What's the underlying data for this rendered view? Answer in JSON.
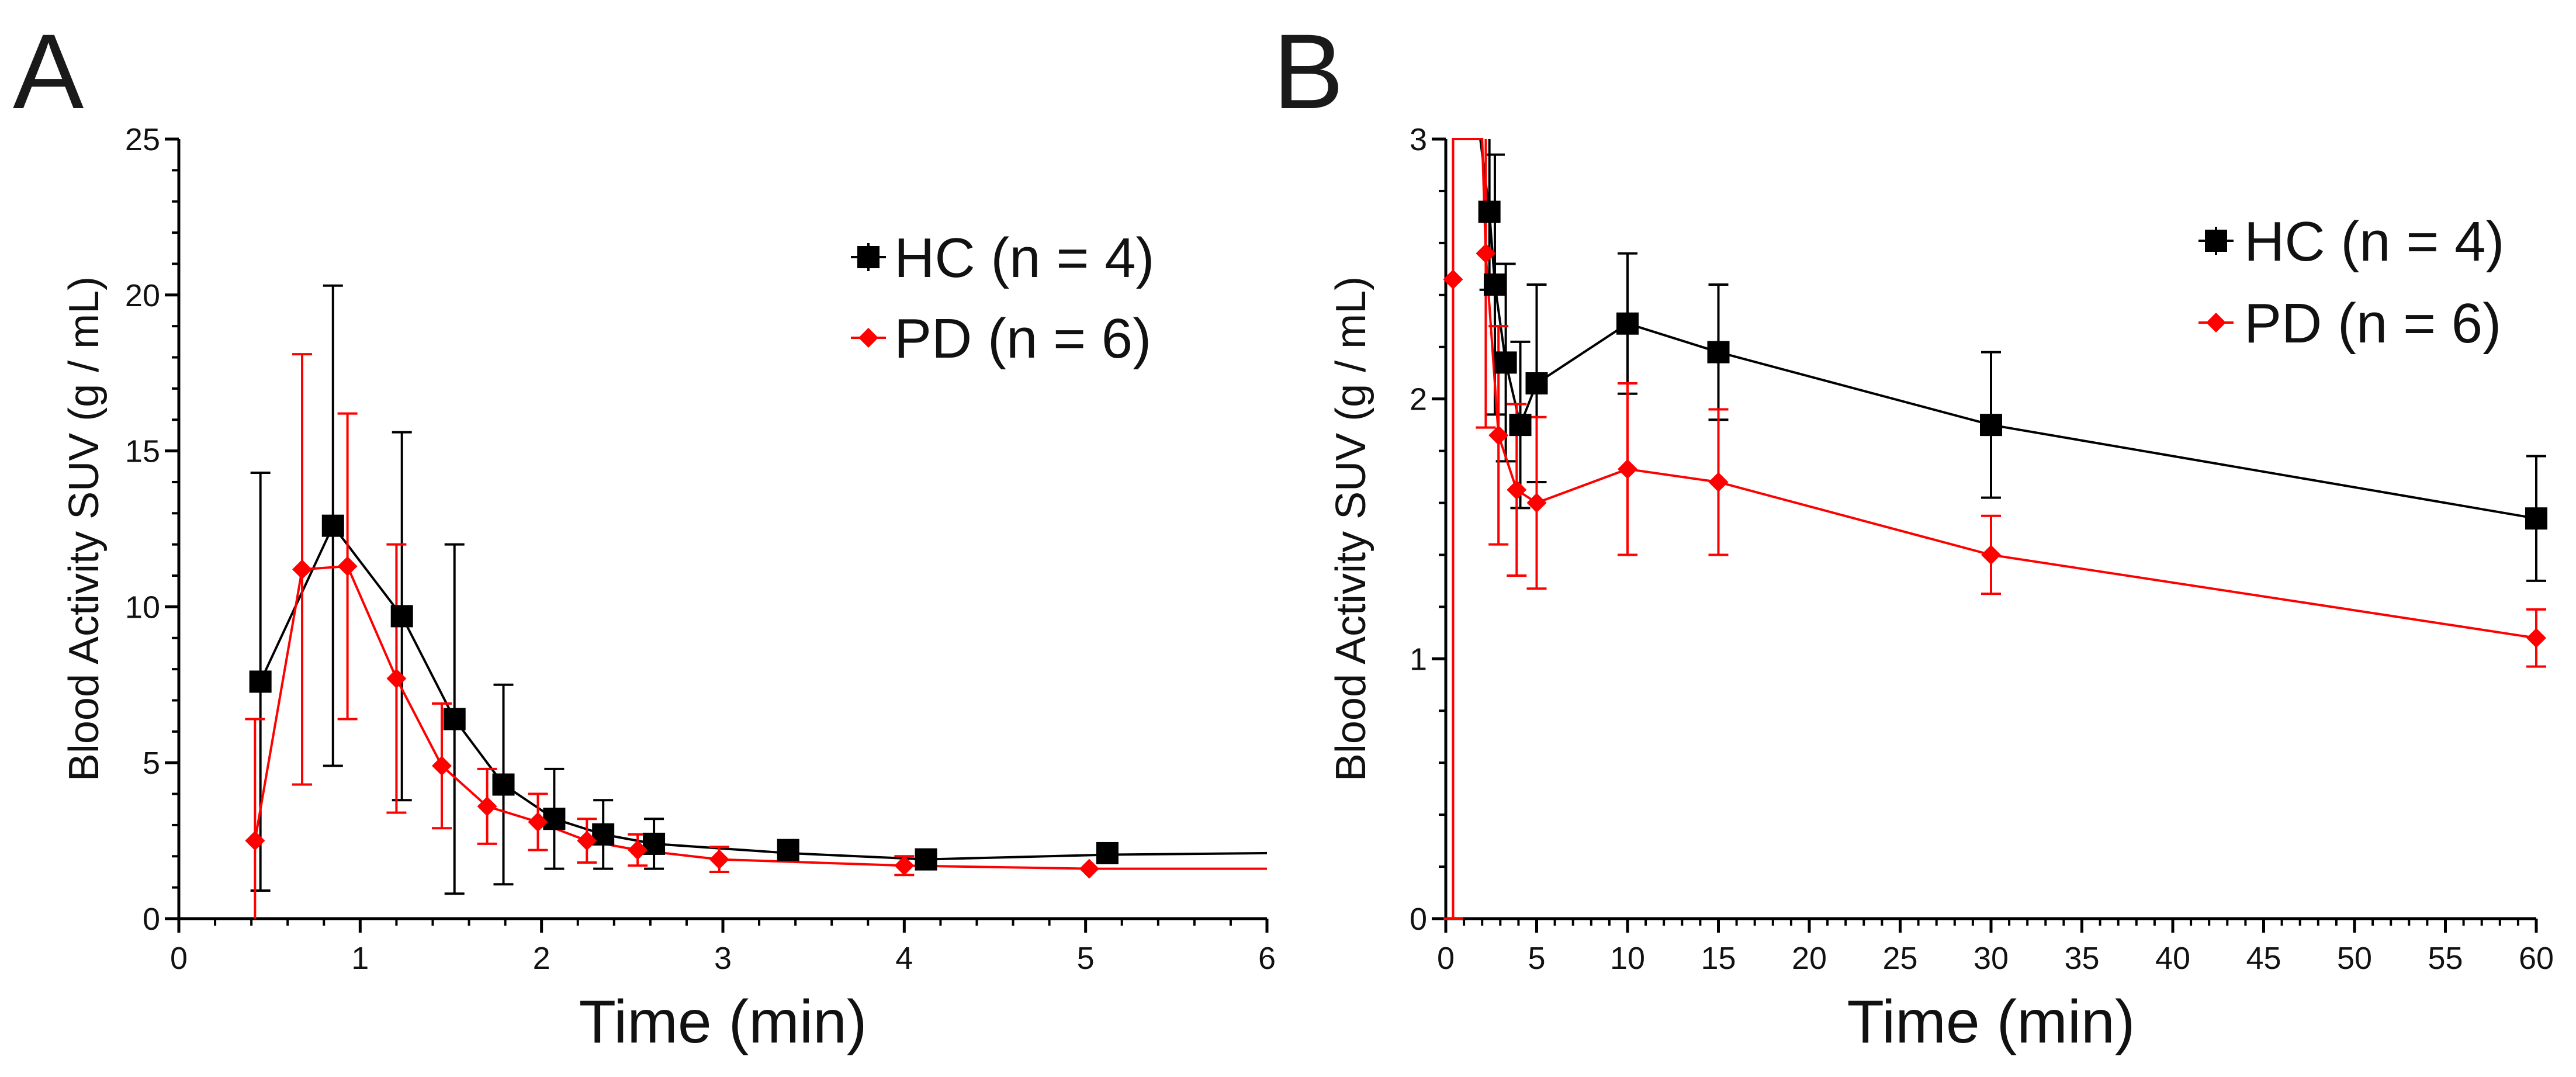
{
  "figure": {
    "panel_labels": [
      "A",
      "B"
    ]
  },
  "colors": {
    "hc": "#000000",
    "pd": "#ff0000",
    "axis": "#000000"
  },
  "chart_data": [
    {
      "type": "line",
      "panel": "A",
      "title": "",
      "xlabel": "Time (min)",
      "ylabel": "Blood Activity SUV (g / mL)",
      "xlim": [
        0,
        6
      ],
      "ylim": [
        0,
        25
      ],
      "xticks": [
        "0",
        "1",
        "2",
        "3",
        "4",
        "5",
        "6"
      ],
      "yticks": [
        "0",
        "5",
        "10",
        "15",
        "20",
        "25"
      ],
      "legend_position": "top-right",
      "series": [
        {
          "name": "HC (n = 4)",
          "color_key": "hc",
          "marker": "square",
          "points": [
            {
              "x": 0.45,
              "y": 7.6,
              "err": 6.7
            },
            {
              "x": 0.85,
              "y": 12.6,
              "err": 7.7
            },
            {
              "x": 1.23,
              "y": 9.7,
              "err": 5.9
            },
            {
              "x": 1.52,
              "y": 6.4,
              "err": 5.6
            },
            {
              "x": 1.79,
              "y": 4.3,
              "err": 3.2
            },
            {
              "x": 2.07,
              "y": 3.2,
              "err": 1.6
            },
            {
              "x": 2.34,
              "y": 2.7,
              "err": 1.1
            },
            {
              "x": 2.62,
              "y": 2.4,
              "err": 0.8
            },
            {
              "x": 3.36,
              "y": 2.2,
              "err": 0
            },
            {
              "x": 4.12,
              "y": 1.9,
              "err": 0
            },
            {
              "x": 5.12,
              "y": 2.1,
              "err": 0
            }
          ],
          "curve": [
            [
              0.45,
              7.6
            ],
            [
              0.85,
              12.6
            ],
            [
              1.23,
              9.7
            ],
            [
              1.52,
              6.4
            ],
            [
              1.79,
              4.3
            ],
            [
              2.07,
              3.2
            ],
            [
              2.34,
              2.7
            ],
            [
              2.62,
              2.4
            ],
            [
              3.36,
              2.1
            ],
            [
              4.12,
              1.9
            ],
            [
              5.12,
              2.05
            ],
            [
              6.0,
              2.1
            ]
          ]
        },
        {
          "name": "PD (n = 6)",
          "color_key": "pd",
          "marker": "diamond",
          "points": [
            {
              "x": 0.42,
              "y": 2.5,
              "err": 3.9
            },
            {
              "x": 0.68,
              "y": 11.2,
              "err": 6.9
            },
            {
              "x": 0.93,
              "y": 11.3,
              "err": 4.9
            },
            {
              "x": 1.2,
              "y": 7.7,
              "err": 4.3
            },
            {
              "x": 1.45,
              "y": 4.9,
              "err": 2.0
            },
            {
              "x": 1.7,
              "y": 3.6,
              "err": 1.2
            },
            {
              "x": 1.98,
              "y": 3.1,
              "err": 0.9
            },
            {
              "x": 2.25,
              "y": 2.5,
              "err": 0.7
            },
            {
              "x": 2.53,
              "y": 2.2,
              "err": 0.5
            },
            {
              "x": 2.98,
              "y": 1.9,
              "err": 0.4
            },
            {
              "x": 4.0,
              "y": 1.7,
              "err": 0.3
            },
            {
              "x": 5.02,
              "y": 1.6,
              "err": 0
            }
          ],
          "curve": [
            [
              0.42,
              2.5
            ],
            [
              0.68,
              11.2
            ],
            [
              0.93,
              11.3
            ],
            [
              1.2,
              7.7
            ],
            [
              1.45,
              4.9
            ],
            [
              1.7,
              3.6
            ],
            [
              1.98,
              3.1
            ],
            [
              2.25,
              2.5
            ],
            [
              2.53,
              2.2
            ],
            [
              2.98,
              1.9
            ],
            [
              4.0,
              1.7
            ],
            [
              5.02,
              1.6
            ],
            [
              6.0,
              1.6
            ]
          ]
        }
      ]
    },
    {
      "type": "line",
      "panel": "B",
      "title": "",
      "xlabel": "Time (min)",
      "ylabel": "Blood Activity SUV (g / mL)",
      "xlim": [
        0,
        60
      ],
      "ylim": [
        0,
        3
      ],
      "xticks": [
        "0",
        "5",
        "10",
        "15",
        "20",
        "25",
        "30",
        "35",
        "40",
        "45",
        "50",
        "55",
        "60"
      ],
      "yticks": [
        "0",
        "1",
        "2",
        "3"
      ],
      "legend_position": "top-right",
      "series": [
        {
          "name": "HC (n = 4)",
          "color_key": "hc",
          "marker": "square",
          "points": [
            {
              "x": 2.4,
              "y": 2.72,
              "err": 0.3
            },
            {
              "x": 2.7,
              "y": 2.44,
              "err": 0.5
            },
            {
              "x": 3.3,
              "y": 2.14,
              "err": 0.38
            },
            {
              "x": 4.1,
              "y": 1.9,
              "err": 0.32
            },
            {
              "x": 5.0,
              "y": 2.06,
              "err": 0.38
            },
            {
              "x": 10.0,
              "y": 2.29,
              "err": 0.27
            },
            {
              "x": 15.0,
              "y": 2.18,
              "err": 0.26
            },
            {
              "x": 30.0,
              "y": 1.9,
              "err": 0.28
            },
            {
              "x": 60.0,
              "y": 1.54,
              "err": 0.24
            }
          ],
          "curve": [
            [
              1.9,
              3.0
            ],
            [
              2.4,
              2.72
            ],
            [
              2.7,
              2.44
            ],
            [
              3.3,
              2.14
            ],
            [
              4.1,
              1.9
            ],
            [
              5.0,
              2.06
            ],
            [
              10.0,
              2.29
            ],
            [
              15.0,
              2.18
            ],
            [
              30.0,
              1.9
            ],
            [
              60.0,
              1.54
            ]
          ]
        },
        {
          "name": "PD (n = 6)",
          "color_key": "pd",
          "marker": "diamond",
          "points": [
            {
              "x": 0.4,
              "y": 2.46,
              "err": 2.46
            },
            {
              "x": 2.2,
              "y": 2.56,
              "err": 0.67
            },
            {
              "x": 2.9,
              "y": 1.86,
              "err": 0.42
            },
            {
              "x": 3.9,
              "y": 1.65,
              "err": 0.33
            },
            {
              "x": 5.0,
              "y": 1.6,
              "err": 0.33
            },
            {
              "x": 10.0,
              "y": 1.73,
              "err": 0.33
            },
            {
              "x": 15.0,
              "y": 1.68,
              "err": 0.28
            },
            {
              "x": 30.0,
              "y": 1.4,
              "err": 0.15
            },
            {
              "x": 60.0,
              "y": 1.08,
              "err": 0.11
            }
          ],
          "curve": [
            [
              0.4,
              0.0
            ],
            [
              0.4,
              3.0
            ],
            [
              2.0,
              3.0
            ],
            [
              2.2,
              2.56
            ],
            [
              2.9,
              1.86
            ],
            [
              3.9,
              1.65
            ],
            [
              5.0,
              1.6
            ],
            [
              10.0,
              1.73
            ],
            [
              15.0,
              1.68
            ],
            [
              30.0,
              1.4
            ],
            [
              60.0,
              1.08
            ]
          ]
        }
      ]
    }
  ]
}
